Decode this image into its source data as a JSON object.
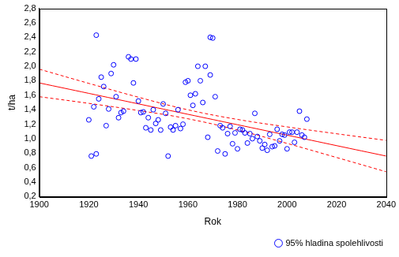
{
  "chart_data": {
    "type": "scatter",
    "x_label": "Rok",
    "y_label": "t/ha",
    "xlim": [
      1900,
      2040
    ],
    "xticks": [
      1900,
      1920,
      1940,
      1960,
      1980,
      2000,
      2020,
      2040
    ],
    "ylim": [
      0.2,
      2.8
    ],
    "yticks": [
      {
        "value": 0.2,
        "label": "0,2"
      },
      {
        "value": 0.4,
        "label": "0,4"
      },
      {
        "value": 0.6,
        "label": "0,6"
      },
      {
        "value": 0.8,
        "label": "0,8"
      },
      {
        "value": 1.0,
        "label": "1,0"
      },
      {
        "value": 1.2,
        "label": "1,2"
      },
      {
        "value": 1.4,
        "label": "1,4"
      },
      {
        "value": 1.6,
        "label": "1,6"
      },
      {
        "value": 1.8,
        "label": "1,8"
      },
      {
        "value": 2.0,
        "label": "2,0"
      },
      {
        "value": 2.2,
        "label": "2,2"
      },
      {
        "value": 2.4,
        "label": "2,4"
      },
      {
        "value": 2.6,
        "label": "2,6"
      },
      {
        "value": 2.8,
        "label": "2,8"
      }
    ],
    "grid": false,
    "legend": "bottom-right",
    "series": [
      {
        "name": "95% hladina spolehlivosti",
        "type": "scatter",
        "marker": "circle",
        "color": "#0000ff",
        "x": [
          1920,
          1921,
          1923,
          1923,
          1922,
          1924,
          1925,
          1926,
          1927,
          1928,
          1929,
          1930,
          1931,
          1932,
          1933,
          1934,
          1936,
          1937,
          1938,
          1939,
          1940,
          1941,
          1942,
          1943,
          1944,
          1945,
          1946,
          1947,
          1948,
          1949,
          1950,
          1951,
          1952,
          1953,
          1954,
          1955,
          1956,
          1957,
          1958,
          1959,
          1960,
          1961,
          1962,
          1963,
          1964,
          1965,
          1966,
          1967,
          1968,
          1969,
          1969,
          1970,
          1971,
          1972,
          1973,
          1974,
          1975,
          1976,
          1977,
          1978,
          1979,
          1980,
          1981,
          1982,
          1983,
          1984,
          1985,
          1986,
          1987,
          1988,
          1989,
          1990,
          1991,
          1992,
          1993,
          1994,
          1995,
          1996,
          1997,
          1998,
          1999,
          2000,
          2001,
          2002,
          2003,
          2004,
          2005,
          2006,
          2007,
          2008
        ],
        "values": [
          1.26,
          0.76,
          0.79,
          2.43,
          1.44,
          1.55,
          1.85,
          1.72,
          1.18,
          1.41,
          1.9,
          2.02,
          1.58,
          1.29,
          1.36,
          1.38,
          2.13,
          2.1,
          1.77,
          2.1,
          1.52,
          1.36,
          1.37,
          1.15,
          1.29,
          1.12,
          1.4,
          1.21,
          1.26,
          1.12,
          1.48,
          1.35,
          0.76,
          1.16,
          1.12,
          1.18,
          1.4,
          1.14,
          1.2,
          1.78,
          1.8,
          1.6,
          1.46,
          1.62,
          2.0,
          1.8,
          1.5,
          2.0,
          1.02,
          1.88,
          2.4,
          2.39,
          1.58,
          0.83,
          1.18,
          1.15,
          0.79,
          1.07,
          1.17,
          0.93,
          1.08,
          0.86,
          1.13,
          1.12,
          1.08,
          0.94,
          1.07,
          1.0,
          1.35,
          1.03,
          0.97,
          0.87,
          0.92,
          0.84,
          1.06,
          0.89,
          0.9,
          1.13,
          0.97,
          1.06,
          1.05,
          0.86,
          1.09,
          1.09,
          0.95,
          1.09,
          1.38,
          1.05,
          1.02,
          1.27
        ]
      },
      {
        "type": "line",
        "line_style": "solid",
        "color": "#ff0000",
        "x": [
          1900,
          1920,
          1940,
          1960,
          1980,
          2000,
          2020,
          2040
        ],
        "values": [
          1.77,
          1.626,
          1.481,
          1.337,
          1.193,
          1.049,
          0.904,
          0.76
        ]
      },
      {
        "type": "line",
        "line_style": "dashed",
        "color": "#ff0000",
        "x": [
          1900,
          1920,
          1940,
          1960,
          1980,
          2000,
          2020,
          2040
        ],
        "values": [
          1.96,
          1.764,
          1.573,
          1.399,
          1.266,
          1.163,
          1.068,
          0.977
        ]
      },
      {
        "type": "line",
        "line_style": "dashed",
        "color": "#ff0000",
        "x": [
          1900,
          1920,
          1940,
          1960,
          1980,
          2000,
          2020,
          2040
        ],
        "values": [
          1.58,
          1.488,
          1.389,
          1.275,
          1.12,
          0.935,
          0.74,
          0.543
        ]
      }
    ]
  }
}
